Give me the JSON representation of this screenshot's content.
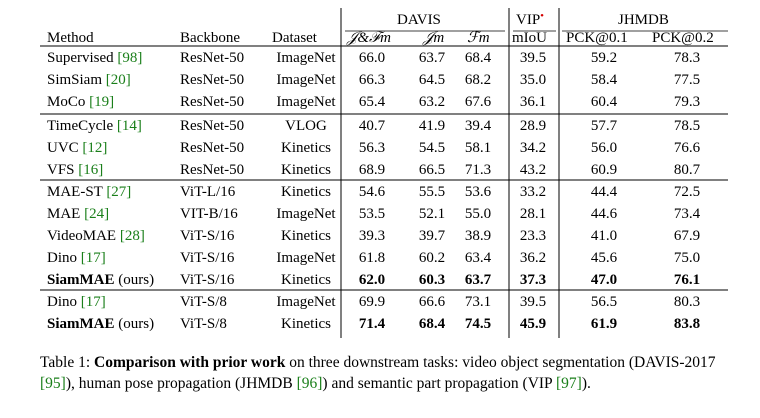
{
  "header": {
    "group_davis": "DAVIS",
    "group_vip": "VIP",
    "group_jhmdb": "JHMDB",
    "col_method": "Method",
    "col_backbone": "Backbone",
    "col_dataset": "Dataset",
    "col_jf": "𝒥&ℱm",
    "col_j": "𝒥m",
    "col_f": "ℱm",
    "col_miou": "mIoU",
    "col_pck1": "PCK@0.1",
    "col_pck2": "PCK@0.2",
    "vip_marker_color": "#d40000"
  },
  "groups": [
    {
      "rows": [
        {
          "method": "Supervised",
          "ref": "[98]",
          "backbone": "ResNet-50",
          "dataset": "ImageNet",
          "jf": "66.0",
          "j": "63.7",
          "f": "68.4",
          "miou": "39.5",
          "pck1": "59.2",
          "pck2": "78.3",
          "bold": false
        },
        {
          "method": "SimSiam",
          "ref": "[20]",
          "backbone": "ResNet-50",
          "dataset": "ImageNet",
          "jf": "66.3",
          "j": "64.5",
          "f": "68.2",
          "miou": "35.0",
          "pck1": "58.4",
          "pck2": "77.5",
          "bold": false
        },
        {
          "method": "MoCo",
          "ref": "[19]",
          "backbone": "ResNet-50",
          "dataset": "ImageNet",
          "jf": "65.4",
          "j": "63.2",
          "f": "67.6",
          "miou": "36.1",
          "pck1": "60.4",
          "pck2": "79.3",
          "bold": false
        }
      ]
    },
    {
      "rows": [
        {
          "method": "TimeCycle",
          "ref": "[14]",
          "backbone": "ResNet-50",
          "dataset": "VLOG",
          "jf": "40.7",
          "j": "41.9",
          "f": "39.4",
          "miou": "28.9",
          "pck1": "57.7",
          "pck2": "78.5",
          "bold": false
        },
        {
          "method": "UVC",
          "ref": "[12]",
          "backbone": "ResNet-50",
          "dataset": "Kinetics",
          "jf": "56.3",
          "j": "54.5",
          "f": "58.1",
          "miou": "34.2",
          "pck1": "56.0",
          "pck2": "76.6",
          "bold": false
        },
        {
          "method": "VFS",
          "ref": "[16]",
          "backbone": "ResNet-50",
          "dataset": "Kinetics",
          "jf": "68.9",
          "j": "66.5",
          "f": "71.3",
          "miou": "43.2",
          "pck1": "60.9",
          "pck2": "80.7",
          "bold": false
        }
      ]
    },
    {
      "rows": [
        {
          "method": "MAE-ST",
          "ref": "[27]",
          "backbone": "ViT-L/16",
          "dataset": "Kinetics",
          "jf": "54.6",
          "j": "55.5",
          "f": "53.6",
          "miou": "33.2",
          "pck1": "44.4",
          "pck2": "72.5",
          "bold": false
        },
        {
          "method": "MAE",
          "ref": "[24]",
          "backbone": "VIT-B/16",
          "dataset": "ImageNet",
          "jf": "53.5",
          "j": "52.1",
          "f": "55.0",
          "miou": "28.1",
          "pck1": "44.6",
          "pck2": "73.4",
          "bold": false
        },
        {
          "method": "VideoMAE",
          "ref": "[28]",
          "backbone": "ViT-S/16",
          "dataset": "Kinetics",
          "jf": "39.3",
          "j": "39.7",
          "f": "38.9",
          "miou": "23.3",
          "pck1": "41.0",
          "pck2": "67.9",
          "bold": false
        },
        {
          "method": "Dino",
          "ref": "[17]",
          "backbone": "ViT-S/16",
          "dataset": "ImageNet",
          "jf": "61.8",
          "j": "60.2",
          "f": "63.4",
          "miou": "36.2",
          "pck1": "45.6",
          "pck2": "75.0",
          "bold": false
        },
        {
          "method": "SiamMAE",
          "ref": "(ours)",
          "backbone": "ViT-S/16",
          "dataset": "Kinetics",
          "jf": "62.0",
          "j": "60.3",
          "f": "63.7",
          "miou": "37.3",
          "pck1": "47.0",
          "pck2": "76.1",
          "bold": true
        }
      ]
    },
    {
      "rows": [
        {
          "method": "Dino",
          "ref": "[17]",
          "backbone": "ViT-S/8",
          "dataset": "ImageNet",
          "jf": "69.9",
          "j": "66.6",
          "f": "73.1",
          "miou": "39.5",
          "pck1": "56.5",
          "pck2": "80.3",
          "bold": false
        },
        {
          "method": "SiamMAE",
          "ref": "(ours)",
          "backbone": "ViT-S/8",
          "dataset": "Kinetics",
          "jf": "71.4",
          "j": "68.4",
          "f": "74.5",
          "miou": "45.9",
          "pck1": "61.9",
          "pck2": "83.8",
          "bold": true
        }
      ]
    }
  ],
  "caption": {
    "label": "Table 1:",
    "bold_part": "Comparison with prior work",
    "text_1": "on three downstream tasks: video object segmentation (DAVIS-2017",
    "ref_1": "[95]",
    "text_2": "), human pose propagation (JHMDB",
    "ref_2": "[96]",
    "text_3": ") and semantic part propagation (VIP",
    "ref_3": "[97]",
    "text_4": ")."
  }
}
